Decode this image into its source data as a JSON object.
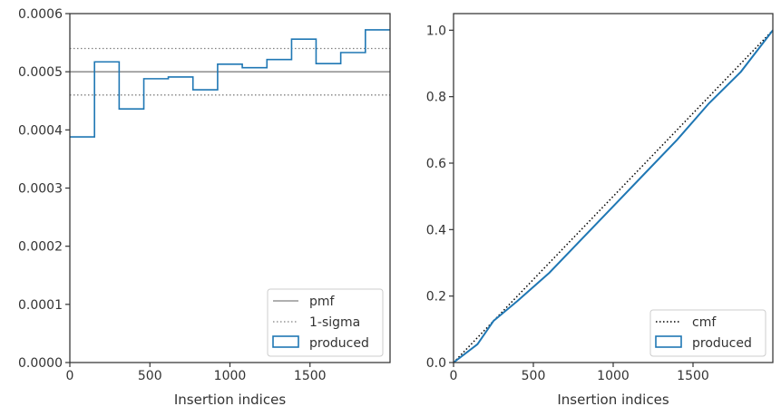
{
  "colors": {
    "produced": "#1f77b4",
    "reference": "#808080",
    "cmf": "#000000",
    "axes": "#333333"
  },
  "chart_data": [
    {
      "type": "step",
      "xlabel": "Insertion indices",
      "xlim": [
        0,
        2000
      ],
      "ylim": [
        0,
        0.0006
      ],
      "x_ticks": [
        0,
        500,
        1000,
        1500
      ],
      "x_tick_labels": [
        "0",
        "500",
        "1000",
        "1500"
      ],
      "y_ticks": [
        0,
        0.0001,
        0.0002,
        0.0003,
        0.0004,
        0.0005,
        0.0006
      ],
      "y_tick_labels": [
        "0.0000",
        "0.0001",
        "0.0002",
        "0.0003",
        "0.0004",
        "0.0005",
        "0.0006"
      ],
      "legend_position": "lower-right",
      "reference_lines": [
        {
          "name": "pmf",
          "y": 0.0005,
          "style": "solid"
        },
        {
          "name": "1-sigma",
          "y": 0.00054,
          "style": "dotted"
        },
        {
          "name": "1-sigma",
          "y": 0.00046,
          "style": "dotted"
        }
      ],
      "series": [
        {
          "name": "produced",
          "bin_edges": [
            0,
            154,
            308,
            462,
            615,
            769,
            923,
            1077,
            1231,
            1385,
            1538,
            1692,
            1846,
            2000
          ],
          "values": [
            0.000388,
            0.000517,
            0.000436,
            0.000488,
            0.000491,
            0.000469,
            0.000513,
            0.000507,
            0.000521,
            0.000556,
            0.000514,
            0.000533,
            0.000572
          ]
        }
      ],
      "legend": [
        "pmf",
        "1-sigma",
        "produced"
      ]
    },
    {
      "type": "line",
      "xlabel": "Insertion indices",
      "xlim": [
        0,
        2000
      ],
      "ylim": [
        0,
        1.05
      ],
      "x_ticks": [
        0,
        500,
        1000,
        1500
      ],
      "x_tick_labels": [
        "0",
        "500",
        "1000",
        "1500"
      ],
      "y_ticks": [
        0,
        0.2,
        0.4,
        0.6,
        0.8,
        1.0
      ],
      "y_tick_labels": [
        "0.0",
        "0.2",
        "0.4",
        "0.6",
        "0.8",
        "1.0"
      ],
      "legend_position": "lower-right",
      "series": [
        {
          "name": "cmf",
          "x": [
            0,
            2000
          ],
          "y": [
            0,
            1.0
          ],
          "style": "dotted"
        },
        {
          "name": "produced",
          "x": [
            0,
            150,
            250,
            400,
            600,
            800,
            1000,
            1200,
            1400,
            1600,
            1800,
            2000
          ],
          "y": [
            0,
            0.055,
            0.125,
            0.185,
            0.27,
            0.37,
            0.47,
            0.57,
            0.67,
            0.78,
            0.875,
            1.0
          ]
        }
      ],
      "legend": [
        "cmf",
        "produced"
      ]
    }
  ]
}
